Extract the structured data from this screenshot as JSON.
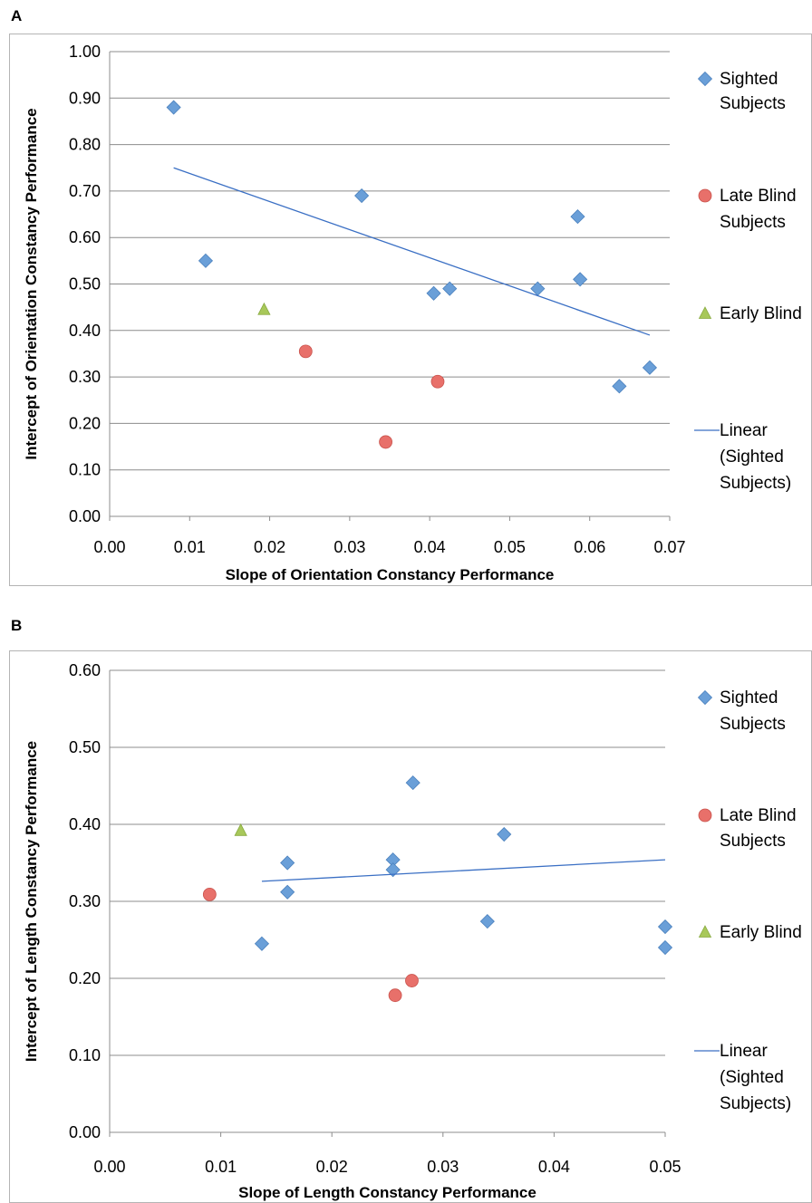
{
  "panels": {
    "a": {
      "letter": "A"
    },
    "b": {
      "letter": "B"
    }
  },
  "colors": {
    "sighted": "#6a9fd8",
    "late_blind": "#e8706a",
    "early_blind": "#a8c85a",
    "trend": "#3a6fc4",
    "grid": "#8c8c8c"
  },
  "chart_data": [
    {
      "type": "scatter",
      "title": "",
      "xlabel": "Slope of Orientation Constancy Performance",
      "ylabel": "Intercept of Orientation Constancy Performance",
      "xlim": [
        0,
        0.07
      ],
      "ylim": [
        0,
        1.0
      ],
      "x_ticks": [
        "0.00",
        "0.01",
        "0.02",
        "0.03",
        "0.04",
        "0.05",
        "0.06",
        "0.07"
      ],
      "y_ticks": [
        "0.00",
        "0.10",
        "0.20",
        "0.30",
        "0.40",
        "0.50",
        "0.60",
        "0.70",
        "0.80",
        "0.90",
        "1.00"
      ],
      "grid": "horizontal",
      "legend_position": "right",
      "series": [
        {
          "name": "Sighted Subjects",
          "marker": "diamond",
          "points": [
            [
              0.008,
              0.88
            ],
            [
              0.012,
              0.55
            ],
            [
              0.0315,
              0.69
            ],
            [
              0.0405,
              0.48
            ],
            [
              0.0425,
              0.49
            ],
            [
              0.0535,
              0.49
            ],
            [
              0.0585,
              0.645
            ],
            [
              0.0588,
              0.51
            ],
            [
              0.0637,
              0.28
            ],
            [
              0.0675,
              0.32
            ]
          ]
        },
        {
          "name": "Late Blind Subjects",
          "marker": "circle",
          "points": [
            [
              0.0245,
              0.355
            ],
            [
              0.0345,
              0.16
            ],
            [
              0.041,
              0.29
            ]
          ]
        },
        {
          "name": "Early Blind",
          "marker": "triangle",
          "points": [
            [
              0.0193,
              0.445
            ]
          ]
        },
        {
          "name": "Linear (Sighted Subjects)",
          "marker": "line",
          "points": [
            [
              0.008,
              0.75
            ],
            [
              0.0675,
              0.39
            ]
          ]
        }
      ]
    },
    {
      "type": "scatter",
      "title": "",
      "xlabel": "Slope of Length Constancy Performance",
      "ylabel": "Intercept of Length Constancy Performance",
      "xlim": [
        0,
        0.05
      ],
      "ylim": [
        0,
        0.6
      ],
      "x_ticks": [
        "0.00",
        "0.01",
        "0.02",
        "0.03",
        "0.04",
        "0.05"
      ],
      "y_ticks": [
        "0.00",
        "0.10",
        "0.20",
        "0.30",
        "0.40",
        "0.50",
        "0.60"
      ],
      "grid": "horizontal",
      "legend_position": "right",
      "series": [
        {
          "name": "Sighted Subjects",
          "marker": "diamond",
          "points": [
            [
              0.0137,
              0.245
            ],
            [
              0.016,
              0.35
            ],
            [
              0.016,
              0.312
            ],
            [
              0.0255,
              0.354
            ],
            [
              0.0255,
              0.341
            ],
            [
              0.0273,
              0.454
            ],
            [
              0.034,
              0.274
            ],
            [
              0.0355,
              0.387
            ],
            [
              0.05,
              0.267
            ],
            [
              0.05,
              0.24
            ]
          ]
        },
        {
          "name": "Late Blind Subjects",
          "marker": "circle",
          "points": [
            [
              0.009,
              0.309
            ],
            [
              0.0257,
              0.178
            ],
            [
              0.0272,
              0.197
            ]
          ]
        },
        {
          "name": "Early Blind",
          "marker": "triangle",
          "points": [
            [
              0.0118,
              0.392
            ]
          ]
        },
        {
          "name": "Linear (Sighted Subjects)",
          "marker": "line",
          "points": [
            [
              0.0137,
              0.326
            ],
            [
              0.05,
              0.354
            ]
          ]
        }
      ]
    }
  ]
}
